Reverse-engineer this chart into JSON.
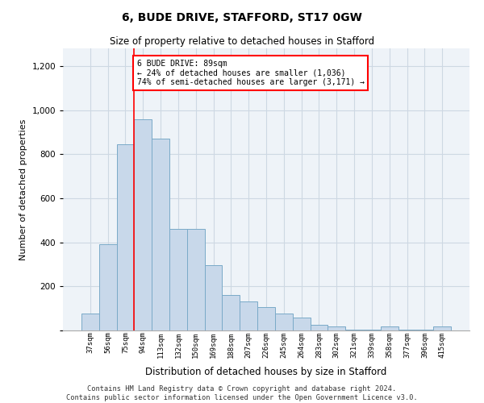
{
  "title1": "6, BUDE DRIVE, STAFFORD, ST17 0GW",
  "title2": "Size of property relative to detached houses in Stafford",
  "xlabel": "Distribution of detached houses by size in Stafford",
  "ylabel": "Number of detached properties",
  "categories": [
    "37sqm",
    "56sqm",
    "75sqm",
    "94sqm",
    "113sqm",
    "132sqm",
    "150sqm",
    "169sqm",
    "188sqm",
    "207sqm",
    "226sqm",
    "245sqm",
    "264sqm",
    "283sqm",
    "302sqm",
    "321sqm",
    "339sqm",
    "358sqm",
    "377sqm",
    "396sqm",
    "415sqm"
  ],
  "values": [
    75,
    390,
    845,
    960,
    870,
    460,
    460,
    295,
    160,
    130,
    105,
    75,
    60,
    25,
    20,
    5,
    5,
    20,
    5,
    5,
    20
  ],
  "bar_color": "#c8d8ea",
  "bar_edge_color": "#7aaac8",
  "vline_position": 2.5,
  "annotation_text": "6 BUDE DRIVE: 89sqm\n← 24% of detached houses are smaller (1,036)\n74% of semi-detached houses are larger (3,171) →",
  "background_color": "#ffffff",
  "plot_bg_color": "#eef3f8",
  "grid_color": "#cdd8e3",
  "footer_text": "Contains HM Land Registry data © Crown copyright and database right 2024.\nContains public sector information licensed under the Open Government Licence v3.0.",
  "ylim": [
    0,
    1280
  ],
  "yticks": [
    0,
    200,
    400,
    600,
    800,
    1000,
    1200
  ]
}
